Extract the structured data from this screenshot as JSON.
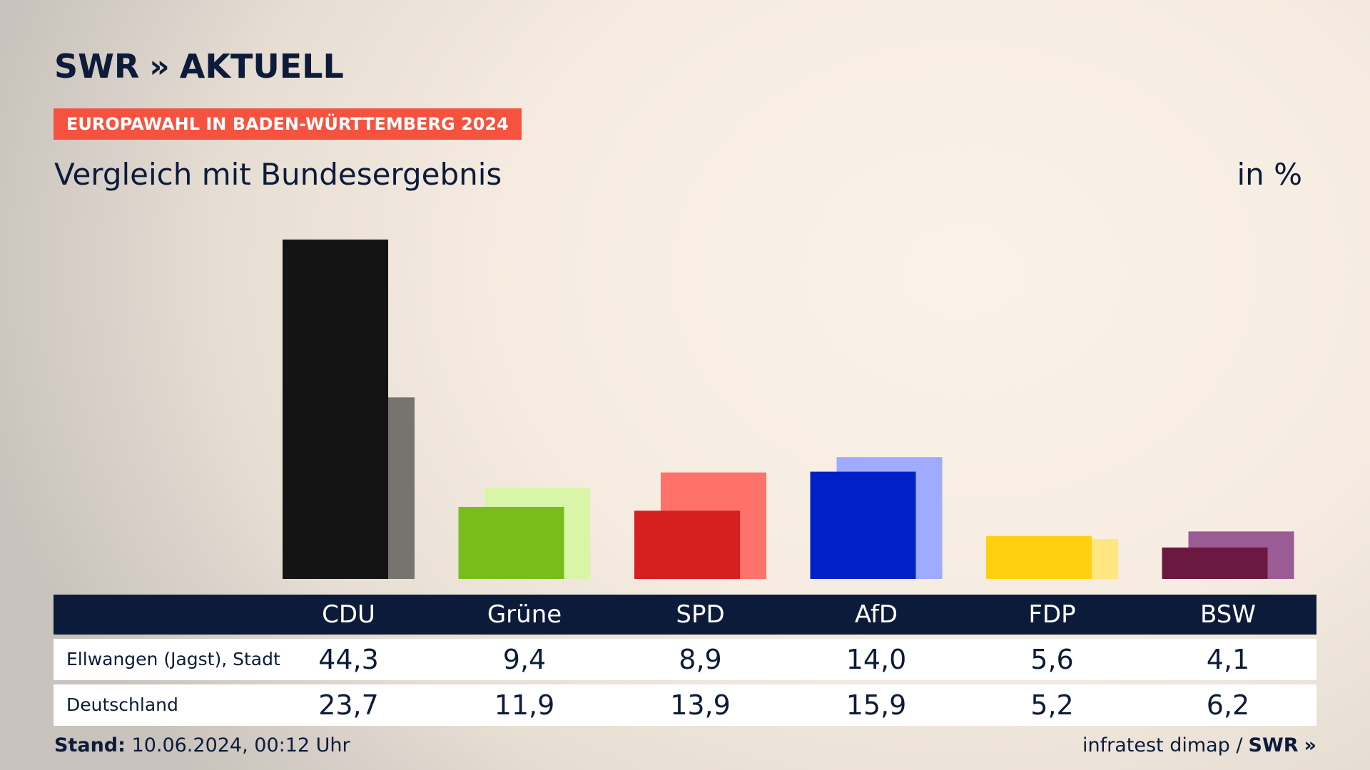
{
  "header": {
    "brand": "SWR",
    "brand_chevrons": "»",
    "brand_product": "AKTUELL",
    "badge": "EUROPAWAHL IN BADEN-WÜRTTEMBERG 2024",
    "subtitle": "Vergleich mit Bundesergebnis",
    "unit": "in %"
  },
  "table": {
    "rows": [
      {
        "label": "Ellwangen (Jagst), Stadt"
      },
      {
        "label": "Deutschland"
      }
    ]
  },
  "footer": {
    "stand_label": "Stand:",
    "stand_value": "10.06.2024, 00:12 Uhr",
    "source": "infratest dimap /",
    "source_brand": "SWR",
    "source_chevrons": "»"
  },
  "chart_data": {
    "type": "bar",
    "categories": [
      "CDU",
      "Grüne",
      "SPD",
      "AfD",
      "FDP",
      "BSW"
    ],
    "series": [
      {
        "name": "Ellwangen (Jagst), Stadt",
        "values": [
          44.3,
          9.4,
          8.9,
          14.0,
          5.6,
          4.1
        ],
        "labels": [
          "44,3",
          "9,4",
          "8,9",
          "14,0",
          "5,6",
          "4,1"
        ]
      },
      {
        "name": "Deutschland",
        "values": [
          23.7,
          11.9,
          13.9,
          15.9,
          5.2,
          6.2
        ],
        "labels": [
          "23,7",
          "11,9",
          "13,9",
          "15,9",
          "5,2",
          "6,2"
        ]
      }
    ],
    "colors": {
      "primary": [
        "#141414",
        "#79bd1a",
        "#d61f1f",
        "#0021c8",
        "#ffd00f",
        "#6b1940"
      ],
      "secondary": [
        "#77746f",
        "#d8f5a8",
        "#ff716a",
        "#9fabff",
        "#ffe680",
        "#9b5b95"
      ]
    },
    "ylim": [
      0,
      44.3
    ],
    "grid": false,
    "legend": "table-below"
  }
}
